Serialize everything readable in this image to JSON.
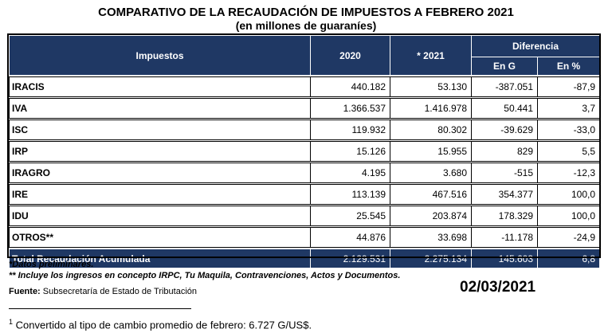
{
  "title": "COMPARATIVO DE LA RECAUDACIÓN DE IMPUESTOS A FEBRERO 2021",
  "subtitle": "(en millones de guaraníes)",
  "table": {
    "headers": {
      "impuestos": "Impuestos",
      "y2020": "2020",
      "y2021": "* 2021",
      "diferencia": "Diferencia",
      "en_g": "En G",
      "en_pct": "En %"
    },
    "rows": [
      {
        "name": "IRACIS",
        "v2020": "440.182",
        "v2021": "53.130",
        "dif_g": "-387.051",
        "dif_pct": "-87,9"
      },
      {
        "name": "IVA",
        "v2020": "1.366.537",
        "v2021": "1.416.978",
        "dif_g": "50.441",
        "dif_pct": "3,7"
      },
      {
        "name": "ISC",
        "v2020": "119.932",
        "v2021": "80.302",
        "dif_g": "-39.629",
        "dif_pct": "-33,0"
      },
      {
        "name": "IRP",
        "v2020": "15.126",
        "v2021": "15.955",
        "dif_g": "829",
        "dif_pct": "5,5"
      },
      {
        "name": "IRAGRO",
        "v2020": "4.195",
        "v2021": "3.680",
        "dif_g": "-515",
        "dif_pct": "-12,3"
      },
      {
        "name": "IRE",
        "v2020": "113.139",
        "v2021": "467.516",
        "dif_g": "354.377",
        "dif_pct": "100,0"
      },
      {
        "name": "IDU",
        "v2020": "25.545",
        "v2021": "203.874",
        "dif_g": "178.329",
        "dif_pct": "100,0"
      },
      {
        "name": "OTROS**",
        "v2020": "44.876",
        "v2021": "33.698",
        "dif_g": "-11.178",
        "dif_pct": "-24,9"
      }
    ],
    "total": {
      "name": "Total Recaudación Acumulada",
      "v2020": "2.129.531",
      "v2021": "2.275.134",
      "dif_g": "145.603",
      "dif_pct": "6,8"
    }
  },
  "notes": {
    "preliminary": "*Datos preliminares.",
    "otros": "** Incluye los ingresos en concepto IRPC, Tu Maquila, Contravenciones, Actos y Documentos."
  },
  "source": {
    "label": "Fuente:",
    "text": " Subsecretaría de Estado de Tributación"
  },
  "date": "02/03/2021",
  "footnote": {
    "mark": "1",
    "text": " Convertido al tipo de cambio promedio de febrero: 6.727 G/US$."
  },
  "colors": {
    "header_bg": "#1F3864",
    "header_text": "#FFFFFF"
  }
}
